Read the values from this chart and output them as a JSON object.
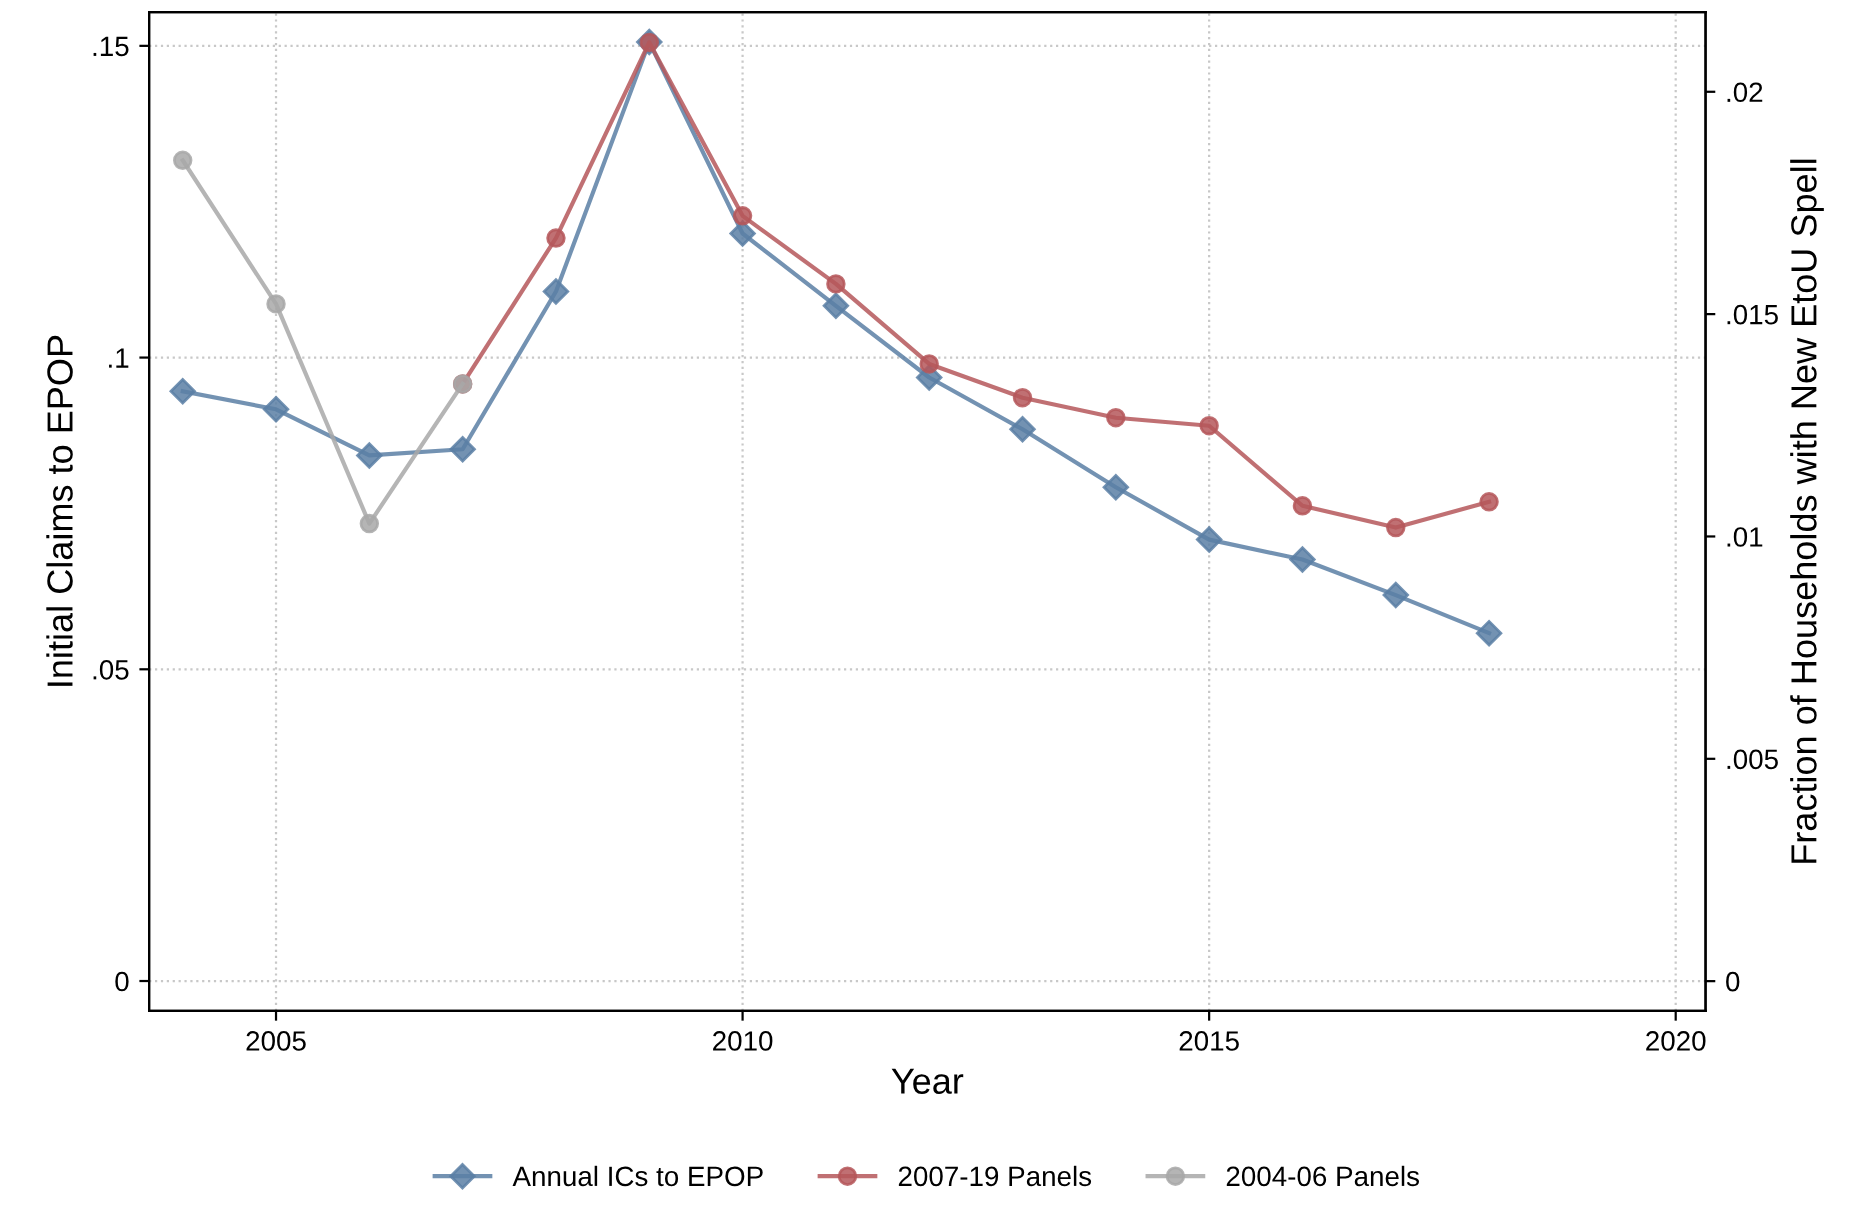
{
  "chart_data": {
    "type": "line",
    "xlabel": "Year",
    "ylabel": "Initial Claims to EPOP",
    "y2label": "Fraction of Households with New EtoU Spell",
    "xlim": [
      2003.64,
      2020.32
    ],
    "xticks": [
      2005,
      2010,
      2015,
      2020
    ],
    "ylim": [
      -0.0048,
      0.1554
    ],
    "yticks": [
      {
        "value": 0,
        "label": "0"
      },
      {
        "value": 0.05,
        "label": ".05"
      },
      {
        "value": 0.1,
        "label": ".1"
      },
      {
        "value": 0.15,
        "label": ".15"
      }
    ],
    "y2lim": [
      -0.00067,
      0.02179
    ],
    "y2ticks": [
      {
        "value": 0,
        "label": "0"
      },
      {
        "value": 0.005,
        "label": ".005"
      },
      {
        "value": 0.01,
        "label": ".01"
      },
      {
        "value": 0.015,
        "label": ".015"
      },
      {
        "value": 0.02,
        "label": ".02"
      }
    ],
    "grid": true,
    "legend": "bottom",
    "line_style": "solid",
    "series": [
      {
        "name": "Annual ICs to EPOP",
        "color": "#5b7fa5",
        "marker": "diamond",
        "x": [
          2004,
          2005,
          2006,
          2007,
          2008,
          2009,
          2010,
          2011,
          2012,
          2013,
          2014,
          2015,
          2016,
          2017,
          2018
        ],
        "values": [
          0.0946,
          0.0917,
          0.0843,
          0.0853,
          0.1106,
          0.1506,
          0.1199,
          0.1083,
          0.0968,
          0.0885,
          0.0792,
          0.0708,
          0.0676,
          0.0619,
          0.0558
        ]
      },
      {
        "name": "2007-19 Panels",
        "color": "#b5575b",
        "marker": "circle",
        "axis": "y2",
        "x": [
          2007,
          2008,
          2009,
          2010,
          2011,
          2012,
          2013,
          2014,
          2015,
          2016,
          2017,
          2018
        ],
        "values": [
          0.01343,
          0.01671,
          0.02111,
          0.01721,
          0.01568,
          0.01388,
          0.01312,
          0.01267,
          0.01249,
          0.01069,
          0.0102,
          0.01078
        ]
      },
      {
        "name": "2004-06 Panels",
        "color": "#a8a8a8",
        "marker": "circle",
        "axis": "y2",
        "x": [
          2004,
          2005,
          2006,
          2007
        ],
        "values": [
          0.01846,
          0.01523,
          0.01029,
          0.01343
        ]
      }
    ]
  }
}
